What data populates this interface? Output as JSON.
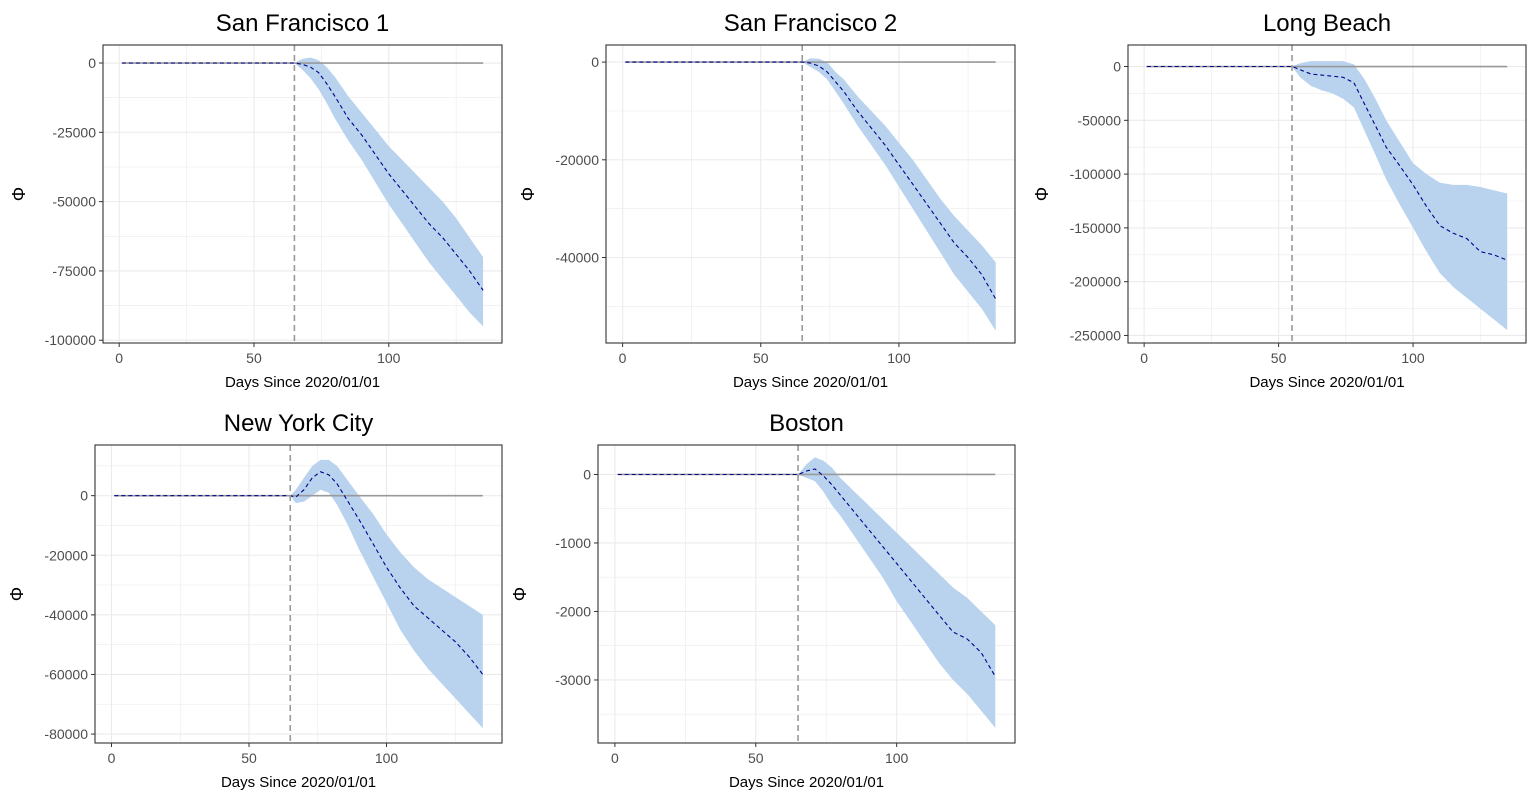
{
  "colors": {
    "ribbon": "#b9d3ee",
    "median_line": "#00008b",
    "zero_line": "#999999",
    "intervention_line": "#999999",
    "panel_border": "#333333",
    "grid": "#ebebeb"
  },
  "chart_data": [
    {
      "type": "area",
      "title": "San Francisco 1",
      "xlabel": "Days Since 2020/01/01",
      "ylabel": "Φ",
      "xlim": [
        -6,
        142
      ],
      "ylim": [
        -101000,
        6500
      ],
      "xticks": [
        0,
        50,
        100
      ],
      "yticks": [
        0,
        -25000,
        -50000,
        -75000,
        -100000
      ],
      "ytick_labels": [
        "0",
        "-25000",
        "-50000",
        "-75000",
        "-100000"
      ],
      "intervention_day": 65,
      "series": [
        {
          "x": [
            1,
            65,
            68,
            71,
            74,
            77,
            80,
            85,
            90,
            95,
            100,
            105,
            110,
            115,
            120,
            125,
            130,
            135
          ],
          "values": [
            0,
            0,
            -500,
            -1500,
            -3500,
            -7500,
            -12000,
            -20000,
            -26000,
            -33000,
            -40000,
            -46000,
            -52000,
            -58000,
            -63000,
            -69000,
            -75000,
            -82000
          ],
          "lower": [
            0,
            0,
            -2500,
            -5500,
            -9500,
            -14500,
            -20000,
            -28000,
            -35000,
            -43000,
            -51000,
            -58000,
            -65000,
            -72000,
            -78000,
            -84000,
            -90000,
            -95000
          ],
          "upper": [
            0,
            0,
            1500,
            2000,
            1000,
            -1500,
            -5000,
            -12000,
            -18000,
            -24000,
            -30000,
            -35000,
            -40000,
            -45000,
            -50000,
            -56000,
            -63000,
            -70000
          ]
        }
      ]
    },
    {
      "type": "area",
      "title": "San Francisco 2",
      "xlabel": "Days Since 2020/01/01",
      "ylabel": "Φ",
      "xlim": [
        -6,
        142
      ],
      "ylim": [
        -57500,
        3500
      ],
      "xticks": [
        0,
        50,
        100
      ],
      "yticks": [
        0,
        -20000,
        -40000
      ],
      "ytick_labels": [
        "0",
        "-20000",
        "-40000"
      ],
      "intervention_day": 65,
      "series": [
        {
          "x": [
            1,
            65,
            68,
            71,
            74,
            77,
            80,
            85,
            90,
            95,
            100,
            105,
            110,
            115,
            120,
            125,
            130,
            135
          ],
          "values": [
            0,
            0,
            -200,
            -800,
            -2000,
            -4000,
            -6000,
            -10000,
            -13500,
            -17000,
            -21000,
            -25000,
            -29000,
            -33000,
            -37000,
            -40000,
            -43500,
            -48500
          ],
          "lower": [
            0,
            0,
            -1000,
            -2000,
            -3500,
            -6000,
            -8500,
            -13000,
            -17000,
            -21000,
            -25500,
            -30000,
            -34500,
            -39000,
            -43500,
            -47000,
            -50500,
            -55000
          ],
          "upper": [
            0,
            0,
            800,
            700,
            0,
            -2000,
            -3500,
            -7000,
            -10000,
            -13000,
            -16500,
            -20000,
            -24000,
            -28000,
            -31500,
            -34500,
            -37500,
            -41000
          ]
        }
      ]
    },
    {
      "type": "area",
      "title": "Long Beach",
      "xlabel": "Days Since 2020/01/01",
      "ylabel": "Φ",
      "xlim": [
        -6,
        142
      ],
      "ylim": [
        -257000,
        20000
      ],
      "xticks": [
        0,
        50,
        100
      ],
      "yticks": [
        0,
        -50000,
        -100000,
        -150000,
        -200000,
        -250000
      ],
      "ytick_labels": [
        "0",
        "-50000",
        "-100000",
        "-150000",
        "-200000",
        "-250000"
      ],
      "intervention_day": 55,
      "series": [
        {
          "x": [
            1,
            55,
            58,
            62,
            66,
            70,
            74,
            78,
            82,
            86,
            90,
            95,
            100,
            105,
            110,
            115,
            120,
            125,
            130,
            135
          ],
          "values": [
            0,
            0,
            -3000,
            -7000,
            -8000,
            -9000,
            -10000,
            -15000,
            -35000,
            -55000,
            -75000,
            -92000,
            -110000,
            -130000,
            -148000,
            -155000,
            -160000,
            -172000,
            -175000,
            -180000
          ],
          "lower": [
            0,
            0,
            -10000,
            -18000,
            -22000,
            -25000,
            -30000,
            -38000,
            -60000,
            -82000,
            -105000,
            -128000,
            -150000,
            -172000,
            -192000,
            -205000,
            -215000,
            -225000,
            -235000,
            -245000
          ],
          "upper": [
            0,
            0,
            3000,
            5000,
            5000,
            5000,
            5000,
            2000,
            -12000,
            -30000,
            -50000,
            -70000,
            -90000,
            -100000,
            -108000,
            -110000,
            -110000,
            -112000,
            -115000,
            -118000
          ]
        }
      ]
    },
    {
      "type": "area",
      "title": "New York City",
      "xlabel": "Days Since 2020/01/01",
      "ylabel": "Φ",
      "xlim": [
        -6,
        142
      ],
      "ylim": [
        -83000,
        17000
      ],
      "xticks": [
        0,
        50,
        100
      ],
      "yticks": [
        0,
        -20000,
        -40000,
        -60000,
        -80000
      ],
      "ytick_labels": [
        "0",
        "-20000",
        "-40000",
        "-60000",
        "-80000"
      ],
      "intervention_day": 65,
      "series": [
        {
          "x": [
            1,
            65,
            67,
            70,
            73,
            76,
            79,
            82,
            86,
            90,
            95,
            100,
            105,
            110,
            115,
            120,
            125,
            130,
            135
          ],
          "values": [
            0,
            0,
            -500,
            2000,
            6000,
            8000,
            7000,
            4000,
            -2000,
            -8000,
            -16000,
            -24000,
            -31000,
            -37000,
            -41000,
            -45000,
            -49000,
            -54000,
            -60000
          ],
          "lower": [
            0,
            0,
            -2500,
            -2000,
            0,
            2000,
            1000,
            -3000,
            -10000,
            -18000,
            -27000,
            -36000,
            -45000,
            -52000,
            -58000,
            -63000,
            -68000,
            -73000,
            -78000
          ],
          "upper": [
            0,
            0,
            2000,
            6000,
            10000,
            12000,
            12000,
            10000,
            5000,
            0,
            -6000,
            -13000,
            -19000,
            -24000,
            -28000,
            -31000,
            -34000,
            -37000,
            -40000
          ]
        }
      ]
    },
    {
      "type": "area",
      "title": "Boston",
      "xlabel": "Days Since 2020/01/01",
      "ylabel": "Φ",
      "xlim": [
        -6,
        142
      ],
      "ylim": [
        -3920,
        430
      ],
      "xticks": [
        0,
        50,
        100
      ],
      "yticks": [
        0,
        -1000,
        -2000,
        -3000
      ],
      "ytick_labels": [
        "0",
        "-1000",
        "-2000",
        "-3000"
      ],
      "intervention_day": 65,
      "series": [
        {
          "x": [
            1,
            65,
            68,
            71,
            74,
            77,
            80,
            85,
            90,
            95,
            100,
            105,
            110,
            115,
            120,
            125,
            130,
            135
          ],
          "values": [
            0,
            0,
            50,
            80,
            -20,
            -150,
            -300,
            -550,
            -800,
            -1050,
            -1300,
            -1550,
            -1800,
            -2050,
            -2300,
            -2400,
            -2600,
            -2950
          ],
          "lower": [
            0,
            0,
            -50,
            -100,
            -250,
            -450,
            -600,
            -900,
            -1200,
            -1500,
            -1850,
            -2150,
            -2450,
            -2750,
            -3000,
            -3200,
            -3450,
            -3700
          ],
          "upper": [
            0,
            0,
            150,
            250,
            200,
            100,
            -50,
            -250,
            -450,
            -650,
            -850,
            -1050,
            -1250,
            -1450,
            -1650,
            -1800,
            -2000,
            -2200
          ]
        }
      ]
    }
  ]
}
